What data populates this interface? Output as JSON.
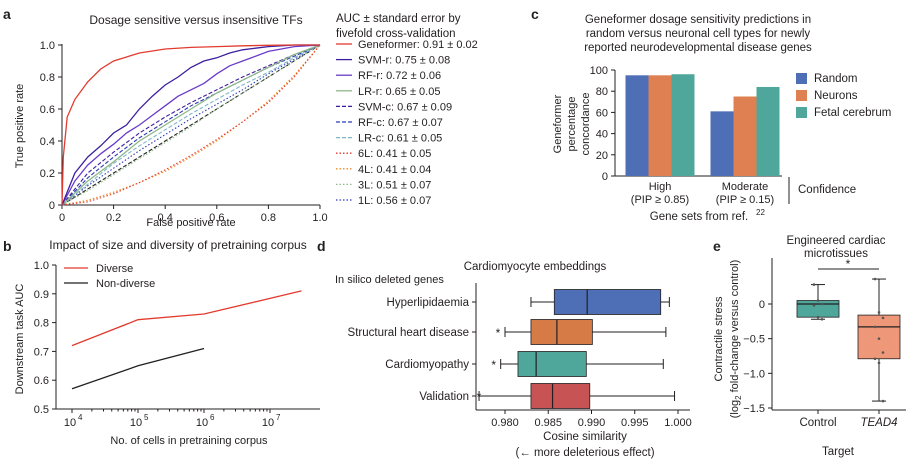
{
  "chart_data": [
    {
      "panel": "a",
      "type": "line",
      "title": "Dosage sensitive versus insensitive TFs",
      "xlabel": "False positive rate",
      "ylabel": "True positive rate",
      "xlim": [
        0,
        1
      ],
      "ylim": [
        0,
        1
      ],
      "xticks": [
        "0",
        "0.2",
        "0.4",
        "0.6",
        "0.8",
        "1.0"
      ],
      "yticks": [
        "0",
        "0.2",
        "0.4",
        "0.6",
        "0.8",
        "1.0"
      ],
      "legend_title_line1": "AUC ± standard error by",
      "legend_title_line2": "fivefold cross-validation",
      "legend_placement": "right",
      "series": [
        {
          "name": "Geneformer: 0.91 ± 0.02",
          "color": "#e23b2f",
          "dash": "solid",
          "x": [
            0,
            0.005,
            0.02,
            0.05,
            0.1,
            0.15,
            0.2,
            0.3,
            0.4,
            0.5,
            0.6,
            0.7,
            0.8,
            0.9,
            1.0
          ],
          "y": [
            0,
            0.3,
            0.55,
            0.66,
            0.77,
            0.85,
            0.9,
            0.95,
            0.975,
            0.985,
            0.99,
            0.995,
            0.998,
            1.0,
            1.0
          ]
        },
        {
          "name": "SVM-r: 0.75 ± 0.08",
          "color": "#3d1f9e",
          "dash": "solid",
          "x": [
            0,
            0.05,
            0.1,
            0.15,
            0.2,
            0.25,
            0.3,
            0.35,
            0.4,
            0.45,
            0.5,
            0.55,
            0.6,
            0.65,
            0.7,
            0.75,
            0.8,
            0.9,
            1.0
          ],
          "y": [
            0,
            0.2,
            0.3,
            0.37,
            0.45,
            0.5,
            0.6,
            0.68,
            0.75,
            0.8,
            0.86,
            0.9,
            0.92,
            0.95,
            0.97,
            0.98,
            0.99,
            1.0,
            1.0
          ]
        },
        {
          "name": "RF-r: 0.72 ± 0.06",
          "color": "#6a3bc8",
          "dash": "solid",
          "x": [
            0,
            0.05,
            0.1,
            0.15,
            0.2,
            0.25,
            0.3,
            0.35,
            0.4,
            0.45,
            0.5,
            0.55,
            0.6,
            0.65,
            0.7,
            0.8,
            0.9,
            1.0
          ],
          "y": [
            0,
            0.15,
            0.25,
            0.32,
            0.38,
            0.45,
            0.5,
            0.56,
            0.62,
            0.68,
            0.72,
            0.76,
            0.82,
            0.87,
            0.9,
            0.96,
            0.99,
            1.0
          ]
        },
        {
          "name": "LR-r: 0.65 ± 0.05",
          "color": "#8fb88a",
          "dash": "solid",
          "x": [
            0,
            0.1,
            0.2,
            0.3,
            0.4,
            0.5,
            0.6,
            0.7,
            0.8,
            0.9,
            1.0
          ],
          "y": [
            0,
            0.15,
            0.27,
            0.4,
            0.5,
            0.6,
            0.7,
            0.78,
            0.86,
            0.94,
            1.0
          ]
        },
        {
          "name": "SVM-c: 0.67 ± 0.09",
          "color": "#3d1f9e",
          "dash": "dash",
          "x": [
            0,
            0.1,
            0.2,
            0.3,
            0.4,
            0.5,
            0.6,
            0.7,
            0.8,
            0.9,
            1.0
          ],
          "y": [
            0,
            0.2,
            0.33,
            0.45,
            0.55,
            0.64,
            0.72,
            0.8,
            0.87,
            0.94,
            1.0
          ]
        },
        {
          "name": "RF-c: 0.67 ± 0.07",
          "color": "#2c3bb5",
          "dash": "dash",
          "x": [
            0,
            0.1,
            0.2,
            0.3,
            0.4,
            0.5,
            0.6,
            0.7,
            0.8,
            0.9,
            1.0
          ],
          "y": [
            0,
            0.17,
            0.3,
            0.42,
            0.52,
            0.62,
            0.7,
            0.78,
            0.86,
            0.93,
            1.0
          ]
        },
        {
          "name": "LR-c: 0.61 ± 0.05",
          "color": "#7fb7c9",
          "dash": "dash",
          "x": [
            0,
            0.1,
            0.2,
            0.3,
            0.4,
            0.5,
            0.6,
            0.7,
            0.8,
            0.9,
            1.0
          ],
          "y": [
            0,
            0.13,
            0.26,
            0.37,
            0.47,
            0.57,
            0.66,
            0.75,
            0.83,
            0.92,
            1.0
          ]
        },
        {
          "name": "6L: 0.41 ± 0.05",
          "color": "#e23b2f",
          "dash": "dot",
          "x": [
            0,
            0.1,
            0.2,
            0.3,
            0.4,
            0.5,
            0.6,
            0.7,
            0.8,
            0.9,
            1.0
          ],
          "y": [
            0,
            0.02,
            0.07,
            0.14,
            0.22,
            0.31,
            0.41,
            0.52,
            0.64,
            0.8,
            1.0
          ]
        },
        {
          "name": "4L: 0.41 ± 0.04",
          "color": "#f08a24",
          "dash": "dot",
          "x": [
            0,
            0.1,
            0.2,
            0.3,
            0.4,
            0.5,
            0.6,
            0.7,
            0.8,
            0.9,
            1.0
          ],
          "y": [
            0,
            0.03,
            0.08,
            0.14,
            0.21,
            0.3,
            0.4,
            0.52,
            0.65,
            0.81,
            1.0
          ]
        },
        {
          "name": "3L: 0.51 ± 0.07",
          "color": "#8fb88a",
          "dash": "dot",
          "x": [
            0,
            0.1,
            0.2,
            0.3,
            0.4,
            0.5,
            0.6,
            0.7,
            0.8,
            0.9,
            1.0
          ],
          "y": [
            0,
            0.09,
            0.19,
            0.29,
            0.39,
            0.49,
            0.6,
            0.7,
            0.8,
            0.9,
            1.0
          ]
        },
        {
          "name": "1L: 0.56 ± 0.07",
          "color": "#2c3bb5",
          "dash": "dot",
          "x": [
            0,
            0.1,
            0.2,
            0.3,
            0.4,
            0.5,
            0.6,
            0.7,
            0.8,
            0.9,
            1.0
          ],
          "y": [
            0,
            0.12,
            0.23,
            0.34,
            0.44,
            0.54,
            0.63,
            0.72,
            0.82,
            0.91,
            1.0
          ]
        },
        {
          "name": "",
          "color": "#222222",
          "dash": "dash",
          "x": [
            0,
            1
          ],
          "y": [
            0,
            1
          ]
        }
      ]
    },
    {
      "panel": "b",
      "type": "line",
      "title": "Impact of size and diversity of pretraining corpus",
      "xlabel": "No. of cells in pretraining corpus",
      "ylabel": "Downstream task AUC",
      "xscale": "log",
      "xlim": [
        4,
        8
      ],
      "ylim": [
        0.5,
        1.0
      ],
      "xticks": [
        4,
        5,
        6,
        7
      ],
      "yticks": [
        "0.5",
        "0.6",
        "0.7",
        "0.8",
        "0.9",
        "1.0"
      ],
      "legend_placement": "top-left",
      "series": [
        {
          "name": "Diverse",
          "color": "#e23b2f",
          "x": [
            10000,
            100000,
            1000000,
            30000000
          ],
          "y": [
            0.72,
            0.81,
            0.83,
            0.91
          ]
        },
        {
          "name": "Non-diverse",
          "color": "#231f20",
          "x": [
            10000,
            100000,
            1000000
          ],
          "y": [
            0.57,
            0.65,
            0.71
          ]
        }
      ]
    },
    {
      "panel": "c",
      "type": "bar",
      "title_lines": [
        "Geneformer dosage sensitivity predictions in",
        "random versus neuronal cell types for newly",
        "reported neurodevelopmental disease genes"
      ],
      "ylabel_lines": [
        "Geneformer",
        "percentage",
        "concordance"
      ],
      "ylim": [
        0,
        100
      ],
      "yticks": [
        0,
        20,
        40,
        60,
        80,
        100
      ],
      "categories": [
        "High",
        "Moderate"
      ],
      "category_sublabels": [
        "(PIP ≥ 0.85)",
        "(PIP ≥ 0.15)"
      ],
      "bracket_label": "Confidence",
      "xlabel": "Gene sets from ref.",
      "xlabel_ref": "22",
      "legend_placement": "right",
      "series": [
        {
          "name": "Random",
          "color": "#4e6fb5",
          "values": [
            95,
            61
          ]
        },
        {
          "name": "Neurons",
          "color": "#df8052",
          "values": [
            95,
            75
          ]
        },
        {
          "name": "Fetal cerebrum",
          "color": "#4fa69a",
          "values": [
            96,
            84
          ]
        }
      ]
    },
    {
      "panel": "d",
      "type": "box",
      "title": "Cardiomyocyte embeddings",
      "group_header": "In silico deleted genes",
      "xlabel": "Cosine similarity",
      "xlabel2": "(← more deleterious effect)",
      "xlim": [
        0.9765,
        1.001
      ],
      "xticks": [
        "0.980",
        "0.985",
        "0.990",
        "0.995",
        "1.000"
      ],
      "star": "*",
      "boxes": [
        {
          "label": "Hyperlipidaemia",
          "color": "#4e6fb5",
          "min": 0.983,
          "q1": 0.9857,
          "median": 0.9895,
          "q3": 0.998,
          "max": 0.999,
          "star": false
        },
        {
          "label": "Structural heart disease",
          "color": "#d67b45",
          "min": 0.98,
          "q1": 0.983,
          "median": 0.986,
          "q3": 0.9901,
          "max": 0.9986,
          "star": true
        },
        {
          "label": "Cardiomyopathy",
          "color": "#4fa69a",
          "min": 0.9795,
          "q1": 0.9815,
          "median": 0.9836,
          "q3": 0.9894,
          "max": 0.9983,
          "star": true
        },
        {
          "label": "Validation",
          "color": "#c75354",
          "min": 0.977,
          "q1": 0.983,
          "median": 0.9855,
          "q3": 0.9898,
          "max": 0.9996,
          "star": true
        }
      ]
    },
    {
      "panel": "e",
      "type": "box",
      "title_lines": [
        "Engineered cardiac",
        "microtissues"
      ],
      "ylabel_line1": "Contractile stress",
      "ylabel_line2_pre": "(log",
      "ylabel_sub": "2",
      "ylabel_line2_post": " fold-change versus control)",
      "xlabel": "Target",
      "ylim": [
        -1.55,
        0.62
      ],
      "yticks": [
        "0",
        "−0.5",
        "−1.0",
        "−1.5"
      ],
      "ytick_values": [
        0,
        -0.5,
        -1.0,
        -1.5
      ],
      "significance": "*",
      "boxes": [
        {
          "label": "Control",
          "italic": false,
          "color": "#4fa69a",
          "min": -0.22,
          "q1": -0.19,
          "median": 0.0,
          "q3": 0.05,
          "max": 0.28,
          "points": [
            0.28,
            0.05,
            0.0,
            -0.02,
            -0.19,
            -0.22
          ]
        },
        {
          "label": "TEAD4",
          "italic": true,
          "color": "#ee9879",
          "min": -1.4,
          "q1": -0.79,
          "median": -0.33,
          "q3": -0.16,
          "max": 0.36,
          "points": [
            0.36,
            -0.12,
            -0.2,
            -0.33,
            -0.5,
            -0.7,
            -0.79,
            -0.85,
            -1.4
          ]
        }
      ]
    }
  ],
  "panel_letters": {
    "a": "a",
    "b": "b",
    "c": "c",
    "d": "d",
    "e": "e"
  }
}
